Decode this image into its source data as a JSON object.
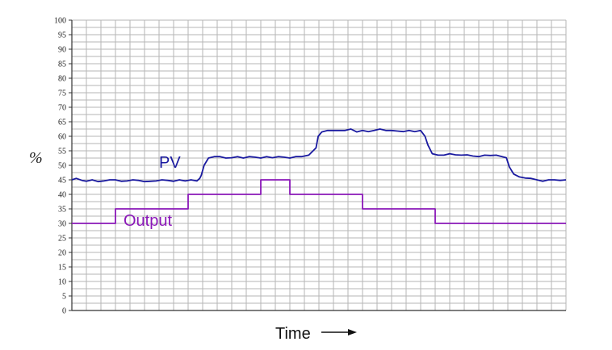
{
  "chart_data": {
    "type": "line",
    "ylabel": "%",
    "xlabel": "Time",
    "ylim": [
      0,
      100
    ],
    "y_ticks": [
      0,
      5,
      10,
      15,
      20,
      25,
      30,
      35,
      40,
      45,
      50,
      55,
      60,
      65,
      70,
      75,
      80,
      85,
      90,
      95,
      100
    ],
    "x_range": [
      0,
      34
    ],
    "grid": true,
    "series": [
      {
        "name": "PV",
        "color": "#1a1aa0",
        "x": [
          0,
          0.3,
          0.7,
          1.0,
          1.4,
          1.8,
          2.2,
          2.6,
          3.0,
          3.4,
          3.8,
          4.2,
          4.6,
          5.0,
          5.4,
          5.8,
          6.2,
          6.6,
          7.0,
          7.4,
          7.8,
          8.2,
          8.6,
          8.8,
          8.9,
          9.1,
          9.4,
          9.8,
          10.2,
          10.6,
          11.0,
          11.4,
          11.8,
          12.2,
          12.6,
          13.0,
          13.4,
          13.8,
          14.2,
          14.6,
          15.0,
          15.4,
          15.8,
          16.3,
          16.8,
          16.95,
          17.2,
          17.6,
          18.0,
          18.4,
          18.8,
          19.2,
          19.6,
          20.0,
          20.4,
          20.8,
          21.2,
          21.6,
          22.0,
          22.4,
          22.8,
          23.2,
          23.6,
          24.0,
          24.3,
          24.5,
          24.8,
          25.2,
          25.6,
          26.0,
          26.4,
          26.8,
          27.2,
          27.6,
          28.0,
          28.4,
          28.8,
          29.2,
          29.6,
          29.9,
          30.1,
          30.4,
          30.8,
          31.2,
          31.6,
          32.0,
          32.4,
          32.8,
          33.2,
          33.6,
          34.0
        ],
        "values": [
          45,
          45.5,
          44.8,
          44.5,
          45,
          44.4,
          44.6,
          45,
          45,
          44.5,
          44.6,
          45,
          44.8,
          44.4,
          44.5,
          44.6,
          45,
          44.8,
          44.5,
          45,
          44.6,
          45,
          44.6,
          45.5,
          46.5,
          50,
          52.5,
          53,
          53,
          52.5,
          52.6,
          53,
          52.5,
          53,
          52.8,
          52.5,
          53,
          52.6,
          53,
          52.8,
          52.5,
          53,
          53,
          53.5,
          56,
          60,
          61.5,
          62,
          62,
          62,
          62,
          62.5,
          61.5,
          62,
          61.6,
          62,
          62.5,
          62,
          62,
          61.8,
          61.6,
          62,
          61.6,
          62,
          60,
          57,
          54,
          53.5,
          53.5,
          54,
          53.6,
          53.5,
          53.6,
          53.2,
          53,
          53.5,
          53.4,
          53.5,
          53,
          52.6,
          49.5,
          47,
          46,
          45.6,
          45.5,
          45,
          44.5,
          45,
          45,
          44.8,
          45
        ]
      },
      {
        "name": "Output",
        "color": "#8a17b8",
        "x": [
          0,
          3,
          3,
          8,
          8,
          13,
          13,
          15,
          15,
          20,
          20,
          25,
          25,
          34
        ],
        "values": [
          30,
          30,
          35,
          35,
          40,
          40,
          45,
          45,
          40,
          40,
          35,
          35,
          30,
          30
        ]
      }
    ]
  }
}
